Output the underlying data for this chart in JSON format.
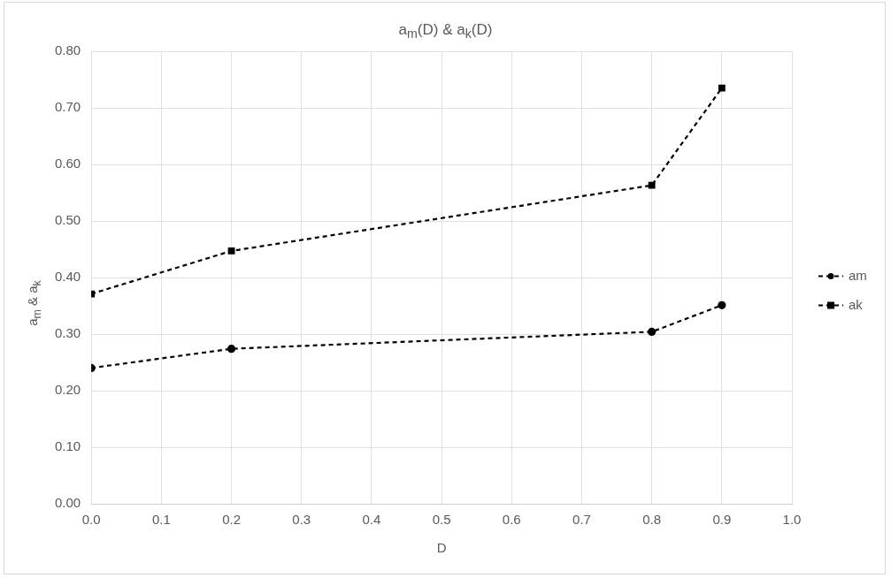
{
  "chart_data": {
    "type": "line",
    "title": "a$_{m}$(D) & a$_{k}$(D)",
    "xlabel": "D",
    "ylabel": "a$_{m}$ & a$_{k}$",
    "x": [
      0.0,
      0.2,
      0.8,
      0.9
    ],
    "series": [
      {
        "name": "am",
        "color": "#000000",
        "marker": "circle",
        "values": [
          0.24,
          0.274,
          0.304,
          0.351
        ]
      },
      {
        "name": "ak",
        "color": "#000000",
        "marker": "square",
        "values": [
          0.371,
          0.447,
          0.563,
          0.735
        ]
      }
    ],
    "xlim": [
      0.0,
      1.0
    ],
    "xticks": [
      {
        "value": 0,
        "label": "0.0"
      },
      0.1,
      0.2,
      0.3,
      0.4,
      0.5,
      0.6,
      0.7,
      0.8,
      0.9,
      {
        "value": 1,
        "label": "1.0"
      }
    ],
    "ylim": [
      0,
      0.8
    ],
    "yticks": [
      {
        "value": 0,
        "label": "0.00"
      },
      {
        "value": 0.1,
        "label": "0.10"
      },
      {
        "value": 0.2,
        "label": "0.20"
      },
      {
        "value": 0.3,
        "label": "0.30"
      },
      {
        "value": 0.4,
        "label": "0.40"
      },
      {
        "value": 0.5,
        "label": "0.50"
      },
      {
        "value": 0.6,
        "label": "0.60"
      },
      {
        "value": 0.7,
        "label": "0.70"
      },
      {
        "value": 0.8,
        "label": "0.80"
      }
    ],
    "grid": true,
    "legend": "right",
    "line_style": "dashed"
  }
}
